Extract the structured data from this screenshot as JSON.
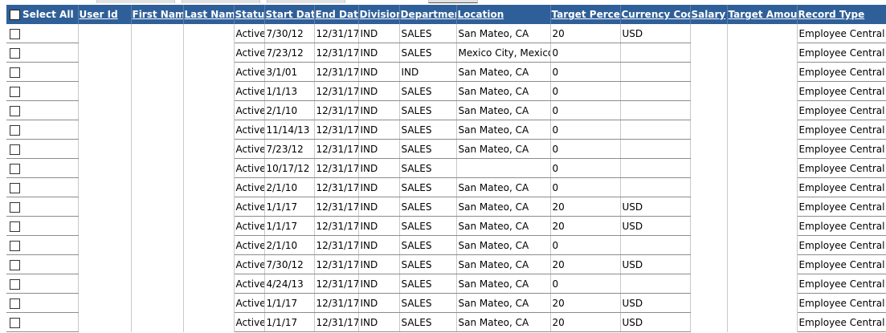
{
  "columns": [
    {
      "key": "select_all",
      "label": "Select All"
    },
    {
      "key": "user_id",
      "label": "User Id"
    },
    {
      "key": "first_name",
      "label": "First Name"
    },
    {
      "key": "last_name",
      "label": "Last Name"
    },
    {
      "key": "status",
      "label": "Status"
    },
    {
      "key": "start_date",
      "label": "Start Date"
    },
    {
      "key": "end_date",
      "label": "End Date"
    },
    {
      "key": "division",
      "label": "Division"
    },
    {
      "key": "department",
      "label": "Department"
    },
    {
      "key": "location",
      "label": "Location"
    },
    {
      "key": "target_percent",
      "label": "Target Percent"
    },
    {
      "key": "currency_code",
      "label": "Currency Code"
    },
    {
      "key": "salary",
      "label": "Salary"
    },
    {
      "key": "target_amount",
      "label": "Target Amount"
    },
    {
      "key": "record_type",
      "label": "Record Type"
    }
  ],
  "rows": [
    {
      "user_id": "",
      "first_name": "",
      "last_name": "",
      "status": "Active",
      "start_date": "7/30/12",
      "end_date": "12/31/17",
      "division": "IND",
      "department": "SALES",
      "location": "San Mateo, CA",
      "target_percent": "20",
      "currency_code": "USD",
      "salary": "",
      "target_amount": "",
      "record_type": "Employee Central"
    },
    {
      "user_id": "",
      "first_name": "",
      "last_name": "",
      "status": "Active",
      "start_date": "7/23/12",
      "end_date": "12/31/17",
      "division": "IND",
      "department": "SALES",
      "location": "Mexico City, Mexico",
      "target_percent": "0",
      "currency_code": "",
      "salary": "",
      "target_amount": "",
      "record_type": "Employee Central"
    },
    {
      "user_id": "",
      "first_name": "",
      "last_name": "",
      "status": "Active",
      "start_date": "3/1/01",
      "end_date": "12/31/17",
      "division": "IND",
      "department": "IND",
      "location": "San Mateo, CA",
      "target_percent": "0",
      "currency_code": "",
      "salary": "",
      "target_amount": "",
      "record_type": "Employee Central"
    },
    {
      "user_id": "",
      "first_name": "",
      "last_name": "",
      "status": "Active",
      "start_date": "1/1/13",
      "end_date": "12/31/17",
      "division": "IND",
      "department": "SALES",
      "location": "San Mateo, CA",
      "target_percent": "0",
      "currency_code": "",
      "salary": "",
      "target_amount": "",
      "record_type": "Employee Central"
    },
    {
      "user_id": "",
      "first_name": "",
      "last_name": "",
      "status": "Active",
      "start_date": "2/1/10",
      "end_date": "12/31/17",
      "division": "IND",
      "department": "SALES",
      "location": "San Mateo, CA",
      "target_percent": "0",
      "currency_code": "",
      "salary": "",
      "target_amount": "",
      "record_type": "Employee Central"
    },
    {
      "user_id": "",
      "first_name": "",
      "last_name": "",
      "status": "Active",
      "start_date": "11/14/13",
      "end_date": "12/31/17",
      "division": "IND",
      "department": "SALES",
      "location": "San Mateo, CA",
      "target_percent": "0",
      "currency_code": "",
      "salary": "",
      "target_amount": "",
      "record_type": "Employee Central"
    },
    {
      "user_id": "",
      "first_name": "",
      "last_name": "",
      "status": "Active",
      "start_date": "7/23/12",
      "end_date": "12/31/17",
      "division": "IND",
      "department": "SALES",
      "location": "San Mateo, CA",
      "target_percent": "0",
      "currency_code": "",
      "salary": "",
      "target_amount": "",
      "record_type": "Employee Central"
    },
    {
      "user_id": "",
      "first_name": "",
      "last_name": "",
      "status": "Active",
      "start_date": "10/17/12",
      "end_date": "12/31/17",
      "division": "IND",
      "department": "SALES",
      "location": "",
      "target_percent": "0",
      "currency_code": "",
      "salary": "",
      "target_amount": "",
      "record_type": "Employee Central"
    },
    {
      "user_id": "",
      "first_name": "",
      "last_name": "",
      "status": "Active",
      "start_date": "2/1/10",
      "end_date": "12/31/17",
      "division": "IND",
      "department": "SALES",
      "location": "San Mateo, CA",
      "target_percent": "0",
      "currency_code": "",
      "salary": "",
      "target_amount": "",
      "record_type": "Employee Central"
    },
    {
      "user_id": "",
      "first_name": "",
      "last_name": "",
      "status": "Active",
      "start_date": "1/1/17",
      "end_date": "12/31/17",
      "division": "IND",
      "department": "SALES",
      "location": "San Mateo, CA",
      "target_percent": "20",
      "currency_code": "USD",
      "salary": "",
      "target_amount": "",
      "record_type": "Employee Central"
    },
    {
      "user_id": "",
      "first_name": "",
      "last_name": "",
      "status": "Active",
      "start_date": "1/1/17",
      "end_date": "12/31/17",
      "division": "IND",
      "department": "SALES",
      "location": "San Mateo, CA",
      "target_percent": "20",
      "currency_code": "USD",
      "salary": "",
      "target_amount": "",
      "record_type": "Employee Central"
    },
    {
      "user_id": "",
      "first_name": "",
      "last_name": "",
      "status": "Active",
      "start_date": "2/1/10",
      "end_date": "12/31/17",
      "division": "IND",
      "department": "SALES",
      "location": "San Mateo, CA",
      "target_percent": "0",
      "currency_code": "",
      "salary": "",
      "target_amount": "",
      "record_type": "Employee Central"
    },
    {
      "user_id": "",
      "first_name": "",
      "last_name": "",
      "status": "Active",
      "start_date": "7/30/12",
      "end_date": "12/31/17",
      "division": "IND",
      "department": "SALES",
      "location": "San Mateo, CA",
      "target_percent": "20",
      "currency_code": "USD",
      "salary": "",
      "target_amount": "",
      "record_type": "Employee Central"
    },
    {
      "user_id": "",
      "first_name": "",
      "last_name": "",
      "status": "Active",
      "start_date": "4/24/13",
      "end_date": "12/31/17",
      "division": "IND",
      "department": "SALES",
      "location": "San Mateo, CA",
      "target_percent": "0",
      "currency_code": "",
      "salary": "",
      "target_amount": "",
      "record_type": "Employee Central"
    },
    {
      "user_id": "",
      "first_name": "",
      "last_name": "",
      "status": "Active",
      "start_date": "1/1/17",
      "end_date": "12/31/17",
      "division": "IND",
      "department": "SALES",
      "location": "San Mateo, CA",
      "target_percent": "20",
      "currency_code": "USD",
      "salary": "",
      "target_amount": "",
      "record_type": "Employee Central"
    },
    {
      "user_id": "",
      "first_name": "",
      "last_name": "",
      "status": "Active",
      "start_date": "1/1/17",
      "end_date": "12/31/17",
      "division": "IND",
      "department": "SALES",
      "location": "San Mateo, CA",
      "target_percent": "20",
      "currency_code": "USD",
      "salary": "",
      "target_amount": "",
      "record_type": "Employee Central"
    }
  ]
}
